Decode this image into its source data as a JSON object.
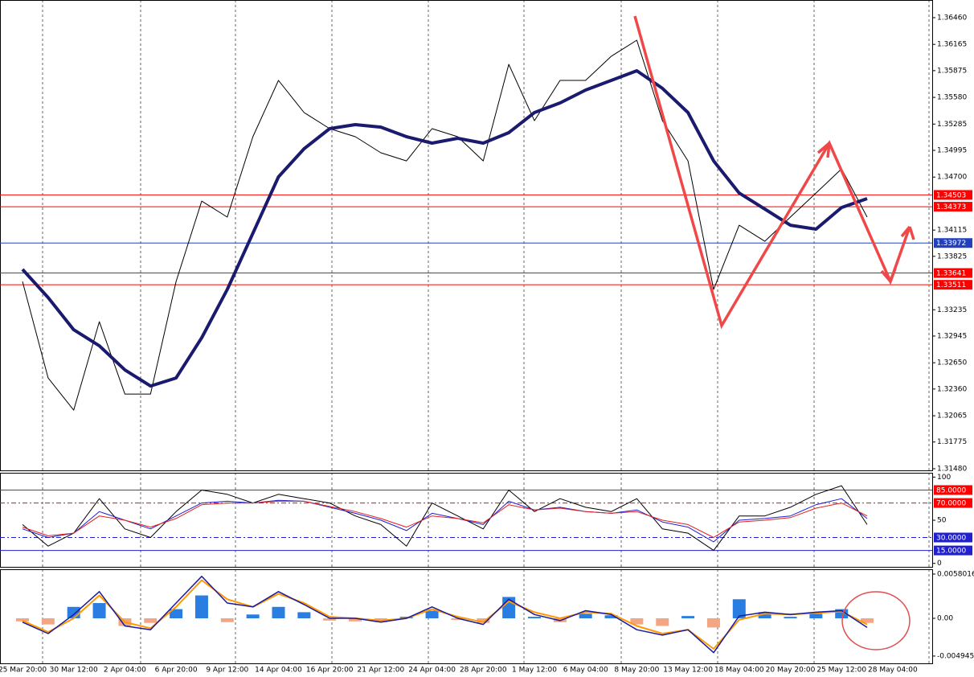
{
  "chart_data": [
    {
      "type": "line",
      "ylim": [
        1.31462,
        1.36655
      ],
      "yticks": [
        {
          "value": 1.3646,
          "label": "1.36460"
        },
        1.36165,
        1.35875,
        {
          "value": 1.3558,
          "label": "1.35580"
        },
        1.35285,
        1.34995,
        {
          "value": 1.347,
          "label": "1.34700"
        },
        1.34115,
        1.33825,
        1.33235,
        1.32945,
        {
          "value": 1.3265,
          "label": "1.32650"
        },
        {
          "value": 1.3236,
          "label": "1.32360"
        },
        1.32065,
        1.31775,
        {
          "value": 1.3148,
          "label": "1.31480"
        }
      ],
      "levels": [
        {
          "value": 1.34503,
          "color": "#ff0000"
        },
        {
          "value": 1.34373,
          "color": "#ff0000"
        },
        {
          "value": 1.33972,
          "color": "#2040c0"
        },
        {
          "value": 1.33641,
          "color": "#ff0000"
        },
        {
          "value": 1.33511,
          "color": "#ff0000"
        }
      ],
      "series": [
        {
          "color": "#000000",
          "width": 1,
          "values": [
            1.33547,
            1.32482,
            1.32127,
            1.33103,
            1.32304,
            1.32304,
            1.33547,
            1.34435,
            1.34258,
            1.35146,
            1.35767,
            1.35412,
            1.35235,
            1.35146,
            1.34968,
            1.34879,
            1.35235,
            1.35146,
            1.34879,
            1.35945,
            1.35323,
            1.35767,
            1.35767,
            1.36034,
            1.36211,
            1.35323,
            1.34879,
            1.33459,
            1.34169,
            1.33991,
            1.34258,
            1.34524,
            1.34791,
            1.34258,
            null
          ]
        },
        {
          "color": "#1a1a6e",
          "width": 4,
          "values": [
            1.33681,
            1.3337,
            1.33015,
            1.32837,
            1.32571,
            1.32393,
            1.32482,
            1.32926,
            1.33459,
            1.3408,
            1.34702,
            1.35013,
            1.35235,
            1.35279,
            1.35252,
            1.35146,
            1.35075,
            1.35128,
            1.35075,
            1.3519,
            1.35412,
            1.35519,
            1.35661,
            1.35767,
            1.35874,
            1.35679,
            1.35412,
            1.34879,
            1.34524,
            1.34347,
            1.34169,
            1.34125,
            1.34364,
            1.34462,
            null
          ]
        }
      ]
    },
    {
      "type": "line",
      "ylim": [
        -4,
        105
      ],
      "yticks": [
        100,
        50,
        0
      ],
      "levels": [
        {
          "value": 85,
          "label": "85.0000",
          "color": "#ff0000"
        },
        {
          "value": 70,
          "label": "70.0000",
          "color": "#ff0000"
        },
        {
          "value": 30,
          "label": "30.0000",
          "color": "#2020d0"
        },
        {
          "value": 15,
          "label": "15.0000",
          "color": "#2020d0"
        }
      ],
      "series": [
        {
          "color": "#000000",
          "width": 1,
          "values": [
            45,
            20,
            35,
            75,
            40,
            30,
            60,
            85,
            80,
            70,
            80,
            75,
            70,
            55,
            45,
            20,
            70,
            55,
            40,
            85,
            60,
            75,
            65,
            60,
            75,
            40,
            35,
            15,
            55,
            55,
            65,
            80,
            90,
            45,
            null
          ]
        },
        {
          "color": "#2020d0",
          "width": 1,
          "values": [
            40,
            30,
            35,
            60,
            50,
            40,
            55,
            70,
            72,
            70,
            73,
            72,
            65,
            58,
            50,
            38,
            58,
            52,
            45,
            72,
            62,
            65,
            60,
            58,
            62,
            48,
            42,
            25,
            50,
            52,
            55,
            68,
            75,
            52,
            null
          ]
        },
        {
          "color": "#e02020",
          "width": 1,
          "values": [
            42,
            32,
            35,
            55,
            50,
            42,
            52,
            68,
            70,
            70,
            72,
            72,
            66,
            60,
            52,
            42,
            55,
            52,
            47,
            68,
            62,
            64,
            60,
            58,
            60,
            50,
            45,
            30,
            48,
            50,
            53,
            64,
            70,
            55,
            null
          ]
        }
      ]
    },
    {
      "type": "combo",
      "ylim": [
        -0.0059,
        0.00643
      ],
      "yticks": [
        0.0058016,
        {
          "value": 0,
          "label": "0.00"
        },
        -0.004945
      ],
      "categories": [
        "25 Mar 20:00",
        null,
        "30 Mar 12:00",
        null,
        "2 Apr 04:00",
        null,
        "6 Apr 20:00",
        null,
        "9 Apr 12:00",
        null,
        "14 Apr 04:00",
        null,
        "16 Apr 20:00",
        null,
        "21 Apr 12:00",
        null,
        "24 Apr 04:00",
        null,
        "28 Apr 20:00",
        null,
        "1 May 12:00",
        null,
        "6 May 04:00",
        null,
        "8 May 20:00",
        null,
        "13 May 12:00",
        null,
        "18 May 04:00",
        null,
        "20 May 20:00",
        null,
        "25 May 12:00",
        null,
        "28 May 04:00"
      ],
      "series": [
        {
          "kind": "bar",
          "color": "#2a7de1",
          "negative_color": "#f4a582",
          "values": [
            -0.0004,
            -0.0008,
            0.0015,
            0.002,
            -0.001,
            -0.0006,
            0.0012,
            0.003,
            -0.0005,
            0.0005,
            0.0015,
            0.0008,
            -0.0003,
            -0.0004,
            -0.0005,
            0.0002,
            0.001,
            -0.0002,
            -0.0006,
            0.0028,
            0.0002,
            -0.0005,
            0.0006,
            0.0004,
            -0.0008,
            -0.001,
            0.0003,
            -0.0012,
            0.0025,
            0.0008,
            0.0002,
            0.0006,
            0.0012,
            -0.0006,
            null
          ]
        },
        {
          "kind": "line",
          "color": "#ff9900",
          "width": 2,
          "values": [
            -0.0003,
            -0.0018,
            0,
            0.003,
            -0.0005,
            -0.0013,
            0.0015,
            0.005,
            0.0025,
            0.0015,
            0.0032,
            0.002,
            0.0002,
            0,
            -0.0003,
            0,
            0.0012,
            0.0002,
            -0.0005,
            0.0022,
            0.0008,
            0,
            0.0008,
            0.0006,
            -0.001,
            -0.002,
            -0.0015,
            -0.004,
            -0.0002,
            0.0006,
            0.0005,
            0.0007,
            0.0009,
            -0.0008,
            null
          ]
        },
        {
          "kind": "line",
          "color": "#1a1aa0",
          "width": 1.5,
          "values": [
            -0.0005,
            -0.002,
            0.0005,
            0.0035,
            -0.001,
            -0.0015,
            0.002,
            0.0055,
            0.002,
            0.0015,
            0.0035,
            0.0018,
            0,
            0,
            -0.0005,
            0,
            0.0015,
            0,
            -0.0008,
            0.0025,
            0.0005,
            -0.0003,
            0.001,
            0.0005,
            -0.0015,
            -0.0022,
            -0.0015,
            -0.0045,
            0.0003,
            0.0008,
            0.0005,
            0.0008,
            0.001,
            -0.0012,
            null
          ]
        }
      ]
    }
  ]
}
